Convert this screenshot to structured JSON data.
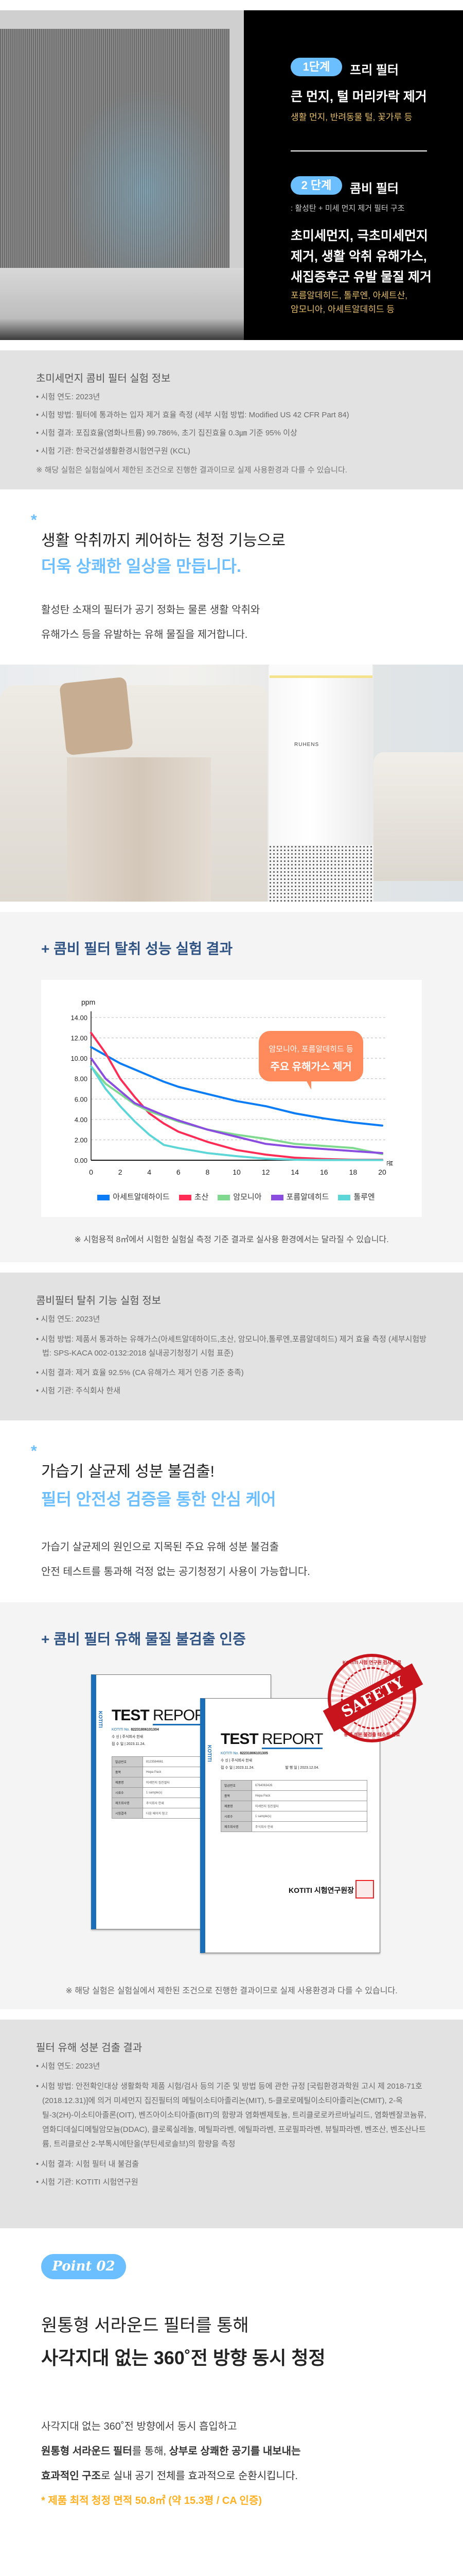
{
  "hero": {
    "stage1": {
      "badge": "1단계",
      "title": "프리 필터",
      "main": "큰 먼지, 털 머리카락 제거",
      "detail": "생활 먼지, 반려동물 털, 꽃가루 등"
    },
    "stage2": {
      "badge": "2 단계",
      "title": "콤비 필터",
      "subtitle": ": 활성탄 + 미세 먼지 제거 필터 구조",
      "main_lines": [
        "초미세먼지, 극초미세먼지",
        "제거, 생활 악취 유해가스,",
        "새집증후군 유발 물질 제거"
      ],
      "detail_lines": [
        "포름알데히드, 톨루엔, 아세트산,",
        "암모니아, 아세트알데히드 등"
      ]
    }
  },
  "info1": {
    "title": "초미세먼지 콤비 필터 실험 정보",
    "bullets": [
      "시험 연도: 2023년",
      "시험 방법: 필터에 통과하는 입자 제거 효율 측정 (세부 시험 방법: Modified US 42 CFR Part 84)",
      "시험 결과: 포집효율(염화나트륨) 99.786%, 초기 집진효율 0.3㎛ 기준 95% 이상",
      "시험 기관: 한국건설생활환경시험연구원 (KCL)"
    ],
    "note": "※ 해당 실험은 실험실에서 제한된 조건으로 진행한 결과이므로 실제 사용환경과 다를 수 있습니다."
  },
  "deodor": {
    "asterisk": "*",
    "headline1": "생활 악취까지 케어하는 청정 기능으로",
    "headline2": "더욱 상쾌한 일상을 만듭니다.",
    "body": [
      "활성탄 소재의 필터가 공기 정화는 물론 생활 악취와",
      "유해가스 등을 유발하는 유해 물질을 제거합니다."
    ],
    "brand": "RUHENS"
  },
  "chart_section": {
    "title": "+ 콤비 필터 탈취 성능 실험 결과",
    "note": "※ 시험용적 8㎥에서 시험한 실험실 측정 기준 결과로 실사용 환경에서는 달라질 수 있습니다."
  },
  "chart_data": {
    "type": "line",
    "title": "",
    "ylabel": "ppm",
    "xlabel": "분",
    "ylim": [
      0,
      14
    ],
    "xlim": [
      0,
      20
    ],
    "yticks": [
      "0.00",
      "2.00",
      "4.00",
      "6.00",
      "8.00",
      "10.00",
      "12.00",
      "14.00"
    ],
    "xticks": [
      "0",
      "2",
      "4",
      "6",
      "8",
      "10",
      "12",
      "14",
      "16",
      "18",
      "20"
    ],
    "grid": true,
    "legend_position": "bottom",
    "x": [
      0,
      1,
      2,
      3,
      4,
      5,
      6,
      8,
      10,
      12,
      14,
      16,
      18,
      20
    ],
    "series": [
      {
        "name": "아세트알데하이드",
        "color": "#0a7cf5",
        "values": [
          11.1,
          10.3,
          9.5,
          8.9,
          8.3,
          7.7,
          7.2,
          6.5,
          5.8,
          5.3,
          4.6,
          4.1,
          3.7,
          3.4
        ]
      },
      {
        "name": "초산",
        "color": "#ff2d55",
        "values": [
          12.5,
          10.5,
          8.0,
          6.2,
          4.6,
          3.6,
          2.8,
          1.8,
          1.0,
          0.55,
          0.25,
          0.12,
          0.05,
          0.05
        ]
      },
      {
        "name": "암모니아",
        "color": "#7fd98e",
        "values": [
          9.2,
          7.5,
          6.5,
          5.5,
          4.8,
          4.3,
          3.8,
          3.0,
          2.5,
          2.1,
          1.6,
          1.4,
          1.2,
          0.6
        ]
      },
      {
        "name": "포름알데히드",
        "color": "#8a4de0",
        "values": [
          10.0,
          8.0,
          6.8,
          5.6,
          5.0,
          4.4,
          3.9,
          3.0,
          2.3,
          1.6,
          1.3,
          1.1,
          0.9,
          0.7
        ]
      },
      {
        "name": "톨루엔",
        "color": "#5dd6d8",
        "values": [
          9.2,
          7.0,
          5.3,
          3.8,
          2.5,
          1.5,
          1.2,
          0.7,
          0.4,
          0.15,
          0.05,
          0.02,
          0.02,
          0.02
        ]
      }
    ],
    "annotation": {
      "line1": "암모니아, 포름알데히드 등",
      "line2": "주요 유해가스 제거"
    }
  },
  "info2": {
    "title": "콤비필터 탈취 기능 실험 정보",
    "bullets": [
      "시험 연도: 2023년",
      "시험 방법: 제품서 통과하는 유해가스(아세트알데하이드,초산, 암모니아,톨루엔,포름알데히드) 제거 효율 측정 (세부시험방법: SPS-KACA 002-0132:2018 실내공기청정기 시험 표준)",
      "시험 결과: 제거 효율 92.5% (CA 유해가스 제거 인증 기준 충족)",
      "시험 기관: 주식회사 한새"
    ]
  },
  "safety": {
    "asterisk": "*",
    "headline1": "가습기 살균제 성분 불검출!",
    "headline2": "필터 안전성 검증을 통한 안심 케어",
    "body": [
      "가습기 살균제의 원인으로 지목된 주요 유해 성분 불검출",
      "안전 테스트를 통과해 걱정 없는 공기청정기 사용이 가능합니다."
    ]
  },
  "cert_section": {
    "title": "+ 콤비 필터 유해 물질 불검출 인증",
    "note": "※ 해당 실험은 실험실에서 제한된 조건으로 진행한 결과이므로 실제 사용환경과 다를 수 있습니다.",
    "stamp": {
      "band": "SAFETY",
      "top": "KOTITI 시험 연구원 검사 완료",
      "bottom": "유해 성분 불검출 테스트 완료"
    },
    "docs": [
      {
        "test": "TEST",
        "report": "REPORT",
        "brand": "KOTITI",
        "no_label": "KOTITI No.",
        "no": "82231806101304",
        "to": "수 신 | 주식회사 한새",
        "received": "접 수 일 | 2023.11.24.",
        "rows": [
          [
            "발급번호",
            "8123584661"
          ],
          [
            "품목",
            "Hepa Pack"
          ],
          [
            "제품명",
            "미세먼지 집진필터"
          ],
          [
            "시료수",
            "1 sample(s)"
          ],
          [
            "제조회사명",
            "주식회사 한새"
          ],
          [
            "시험결과",
            "다음 페이지 참고"
          ]
        ]
      },
      {
        "test": "TEST",
        "report": "REPORT",
        "brand": "KOTITI",
        "no_label": "KOTITI No.",
        "no": "82231806101305",
        "to": "수 신 | 주식회사 한새",
        "received": "접 수 일 | 2023.11.24.",
        "issued": "발 행 일 | 2023.12.04.",
        "rows": [
          [
            "발급번호",
            "6764063426"
          ],
          [
            "품목",
            "Hepa Pack"
          ],
          [
            "제품명",
            "미세먼지 집진필터"
          ],
          [
            "시료수",
            "1 sample(s)"
          ],
          [
            "제조회사명",
            "주식회사 한새"
          ]
        ],
        "footer": "KOTITI 시험연구원장"
      }
    ]
  },
  "info3": {
    "title": "필터 유해 성분 검출 결과",
    "bullets": [
      "시험 연도: 2023년",
      "시험 방법: 안전확인대상 생활화학 제품 시험/검사 등의 기준 및 방법 등에 관한 규정 [국립환경과학원 고시 제 2018-71호(2018.12.31)]에 의거 미세먼지 집진필터의 메틸이소티아졸리논(MIT), 5-클로로메틸이소티아졸리논(CMIT), 2-옥틸-3(2H)-이소티아졸론(OIT), 벤즈아이소티아졸(BIT)의 함량과 염화벤제토늄, 트리클로로카르바닐리드, 염화벤잘코늄류, 염화디데실디메틸암모늄(DDAC), 클로록실레놀, 메틸파라벤, 에틸파라벤, 프로필파라벤, 뷰틸파라벤, 벤조산, 벤조산나트륨, 트리클로산 2-부톡시에탄올(부틴세로솔브)의 함량을 측정",
      "시험 결과: 시험 필터 내 불검출",
      "시험 기관: KOTITI 시험연구원"
    ]
  },
  "point2": {
    "badge": "Point 02",
    "headline1": "원통형 서라운드 필터를 통해",
    "headline2": "사각지대 없는 360˚전 방향 동시 청정",
    "line1": "사각지대 없는 360˚전 방향에서 동시 흡입하고",
    "line2": [
      {
        "t": "원통형 서라운드 필터",
        "b": true
      },
      {
        "t": "를 통해, ",
        "b": false
      },
      {
        "t": "상부로 상쾌한 공기를 내보내는",
        "b": true
      }
    ],
    "line3": [
      {
        "t": "효과적인 구조",
        "b": true
      },
      {
        "t": "로 실내 공기 전체를 효과적으로 순환시킵니다.",
        "b": false
      }
    ],
    "highlight": "* 제품 최적 청정 면적 50.8㎡ (약 15.3평 / CA 인증)"
  }
}
